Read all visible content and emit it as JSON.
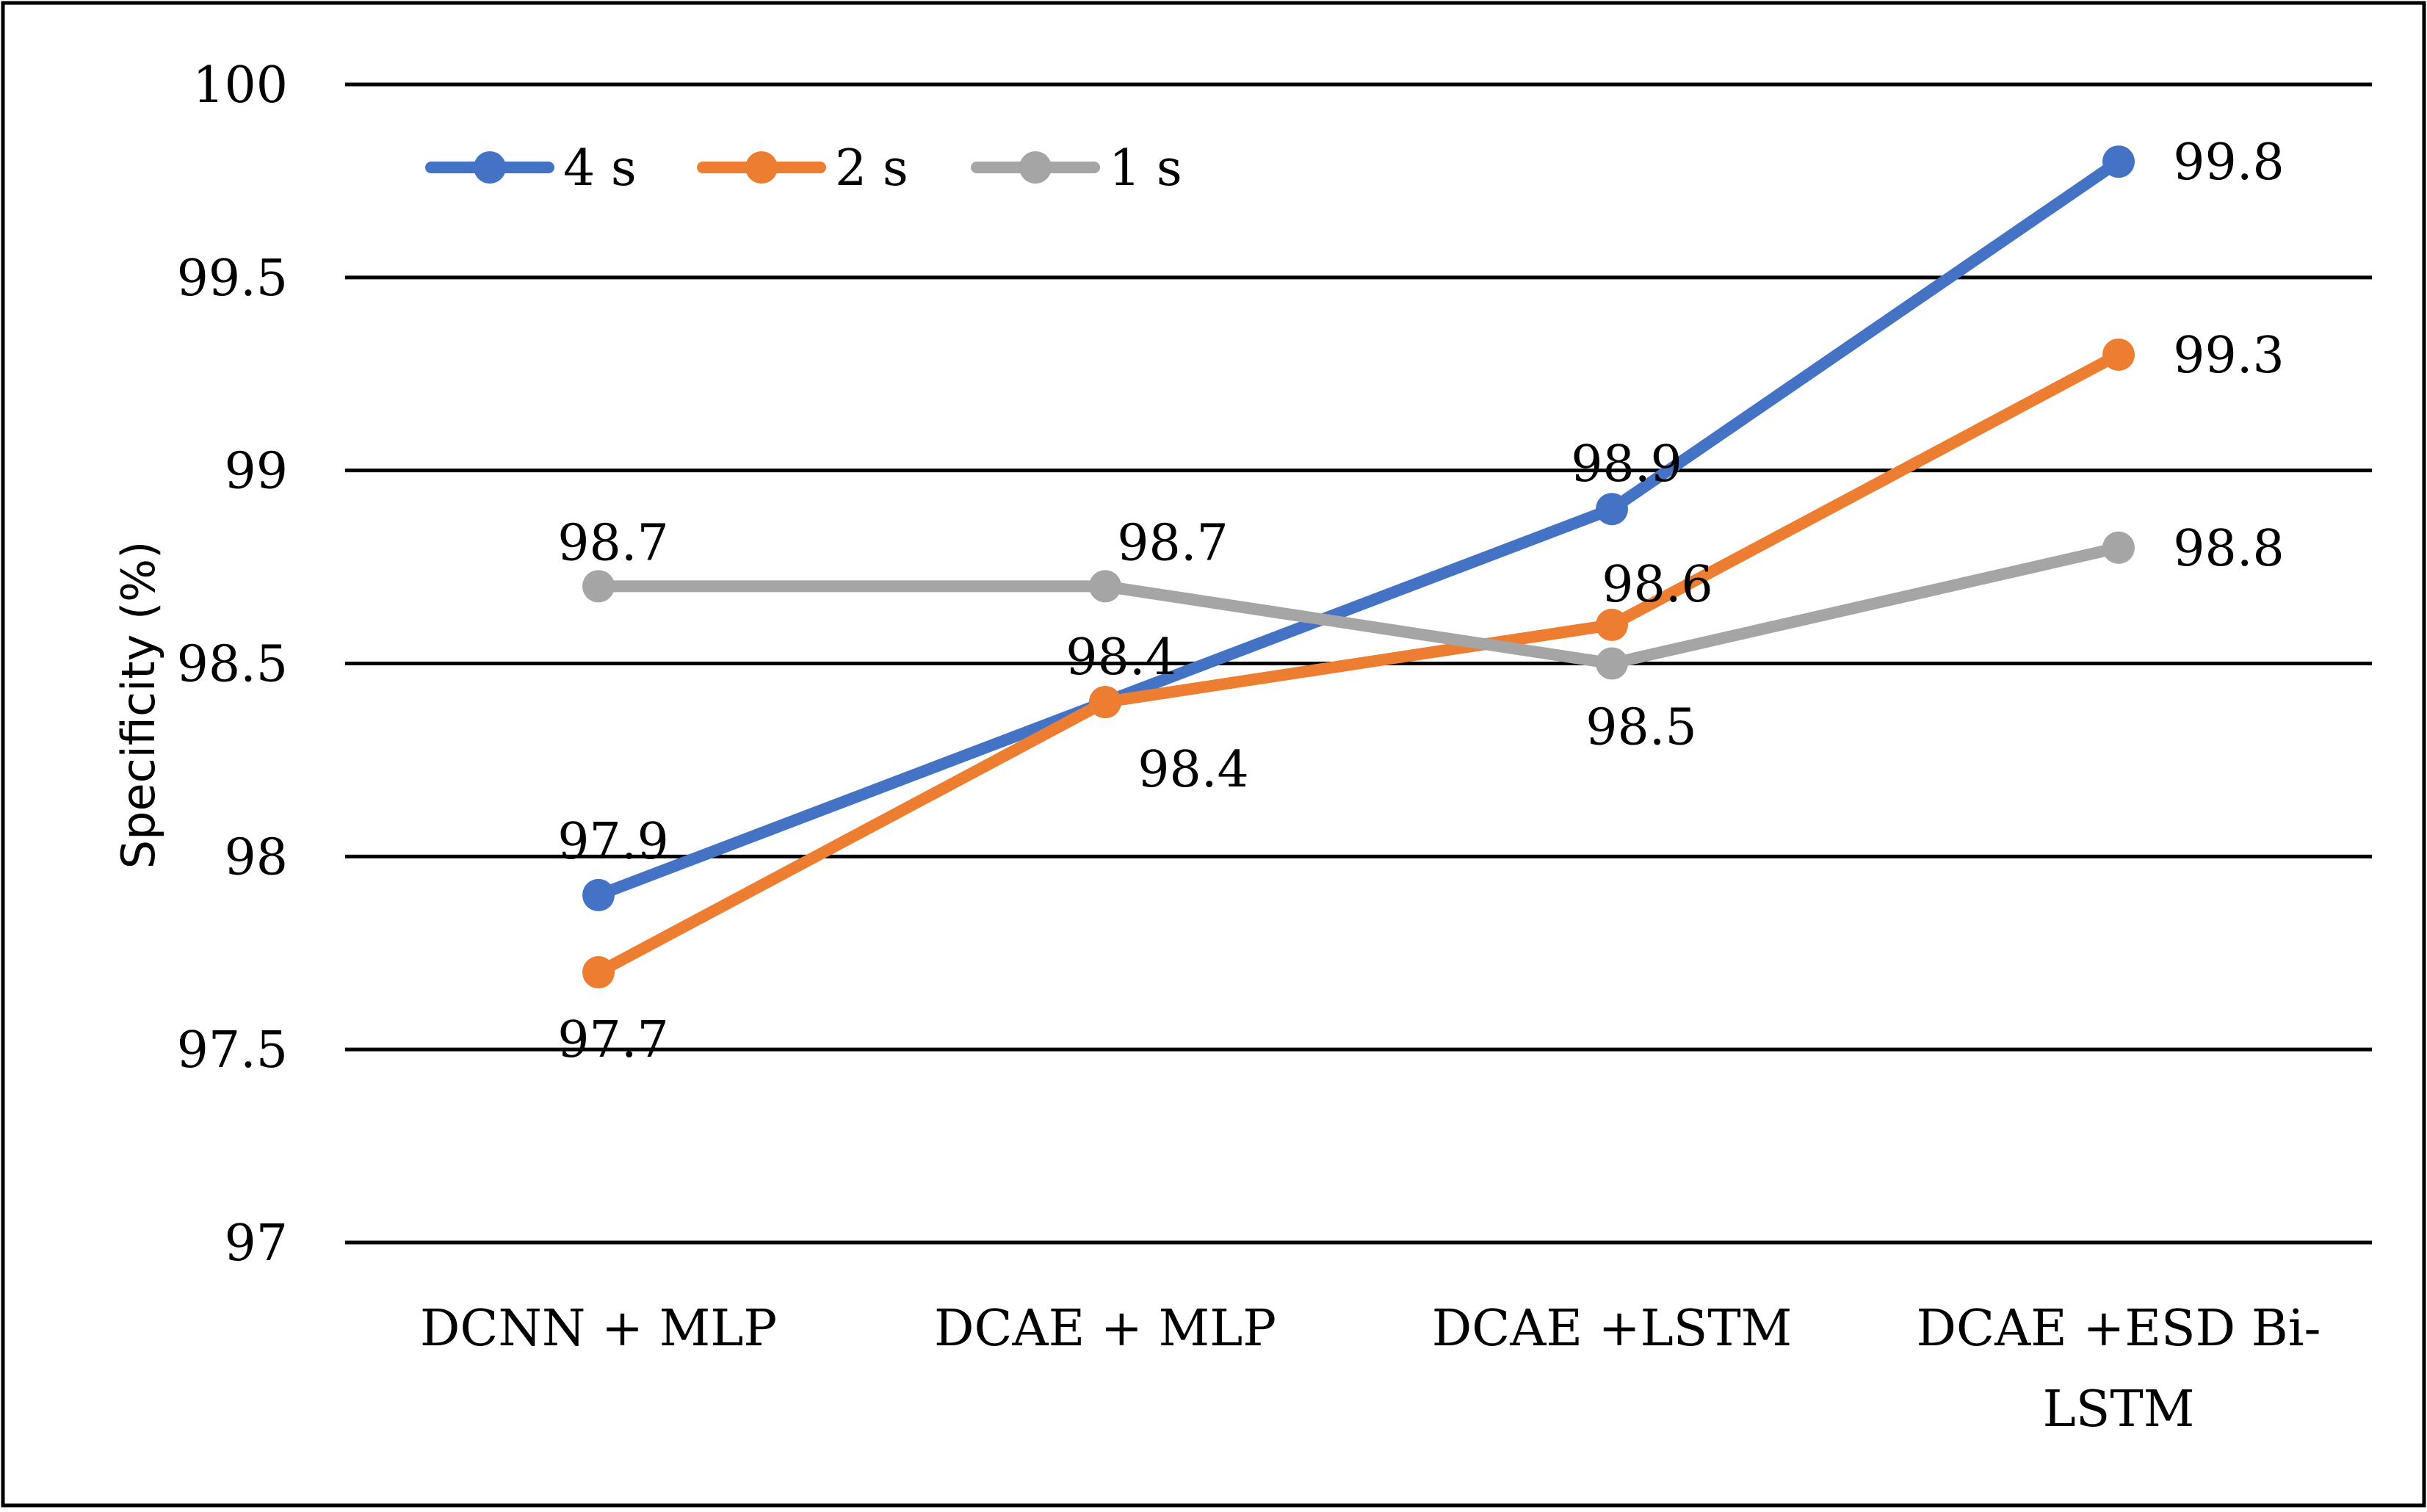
{
  "chart_data": {
    "type": "line",
    "title": "",
    "xlabel": "",
    "ylabel": "Specificity (%)",
    "categories": [
      "DCNN + MLP",
      "DCAE + MLP",
      "DCAE +LSTM",
      "DCAE +ESD Bi-LSTM"
    ],
    "category_lines": [
      [
        "DCNN + MLP"
      ],
      [
        "DCAE + MLP"
      ],
      [
        "DCAE +LSTM"
      ],
      [
        "DCAE +ESD Bi-",
        "LSTM"
      ]
    ],
    "ylim": [
      97,
      100
    ],
    "yticks": [
      97,
      97.5,
      98,
      98.5,
      99,
      99.5,
      100
    ],
    "ytick_labels": [
      "97",
      "97.5",
      "98",
      "98.5",
      "99",
      "99.5",
      "100"
    ],
    "grid": true,
    "legend_position": "top-left",
    "series": [
      {
        "name": "4 s",
        "color": "#4472C4",
        "values": [
          97.9,
          98.4,
          98.9,
          99.8
        ],
        "labels": [
          "97.9",
          "98.4",
          "98.9",
          "99.8"
        ]
      },
      {
        "name": "2 s",
        "color": "#ED7D31",
        "values": [
          97.7,
          98.4,
          98.6,
          99.3
        ],
        "labels": [
          "97.7",
          "98.4",
          "98.6",
          "99.3"
        ]
      },
      {
        "name": "1 s",
        "color": "#A5A5A5",
        "values": [
          98.7,
          98.7,
          98.5,
          98.8
        ],
        "labels": [
          "98.7",
          "98.7",
          "98.5",
          "98.8"
        ]
      }
    ]
  }
}
